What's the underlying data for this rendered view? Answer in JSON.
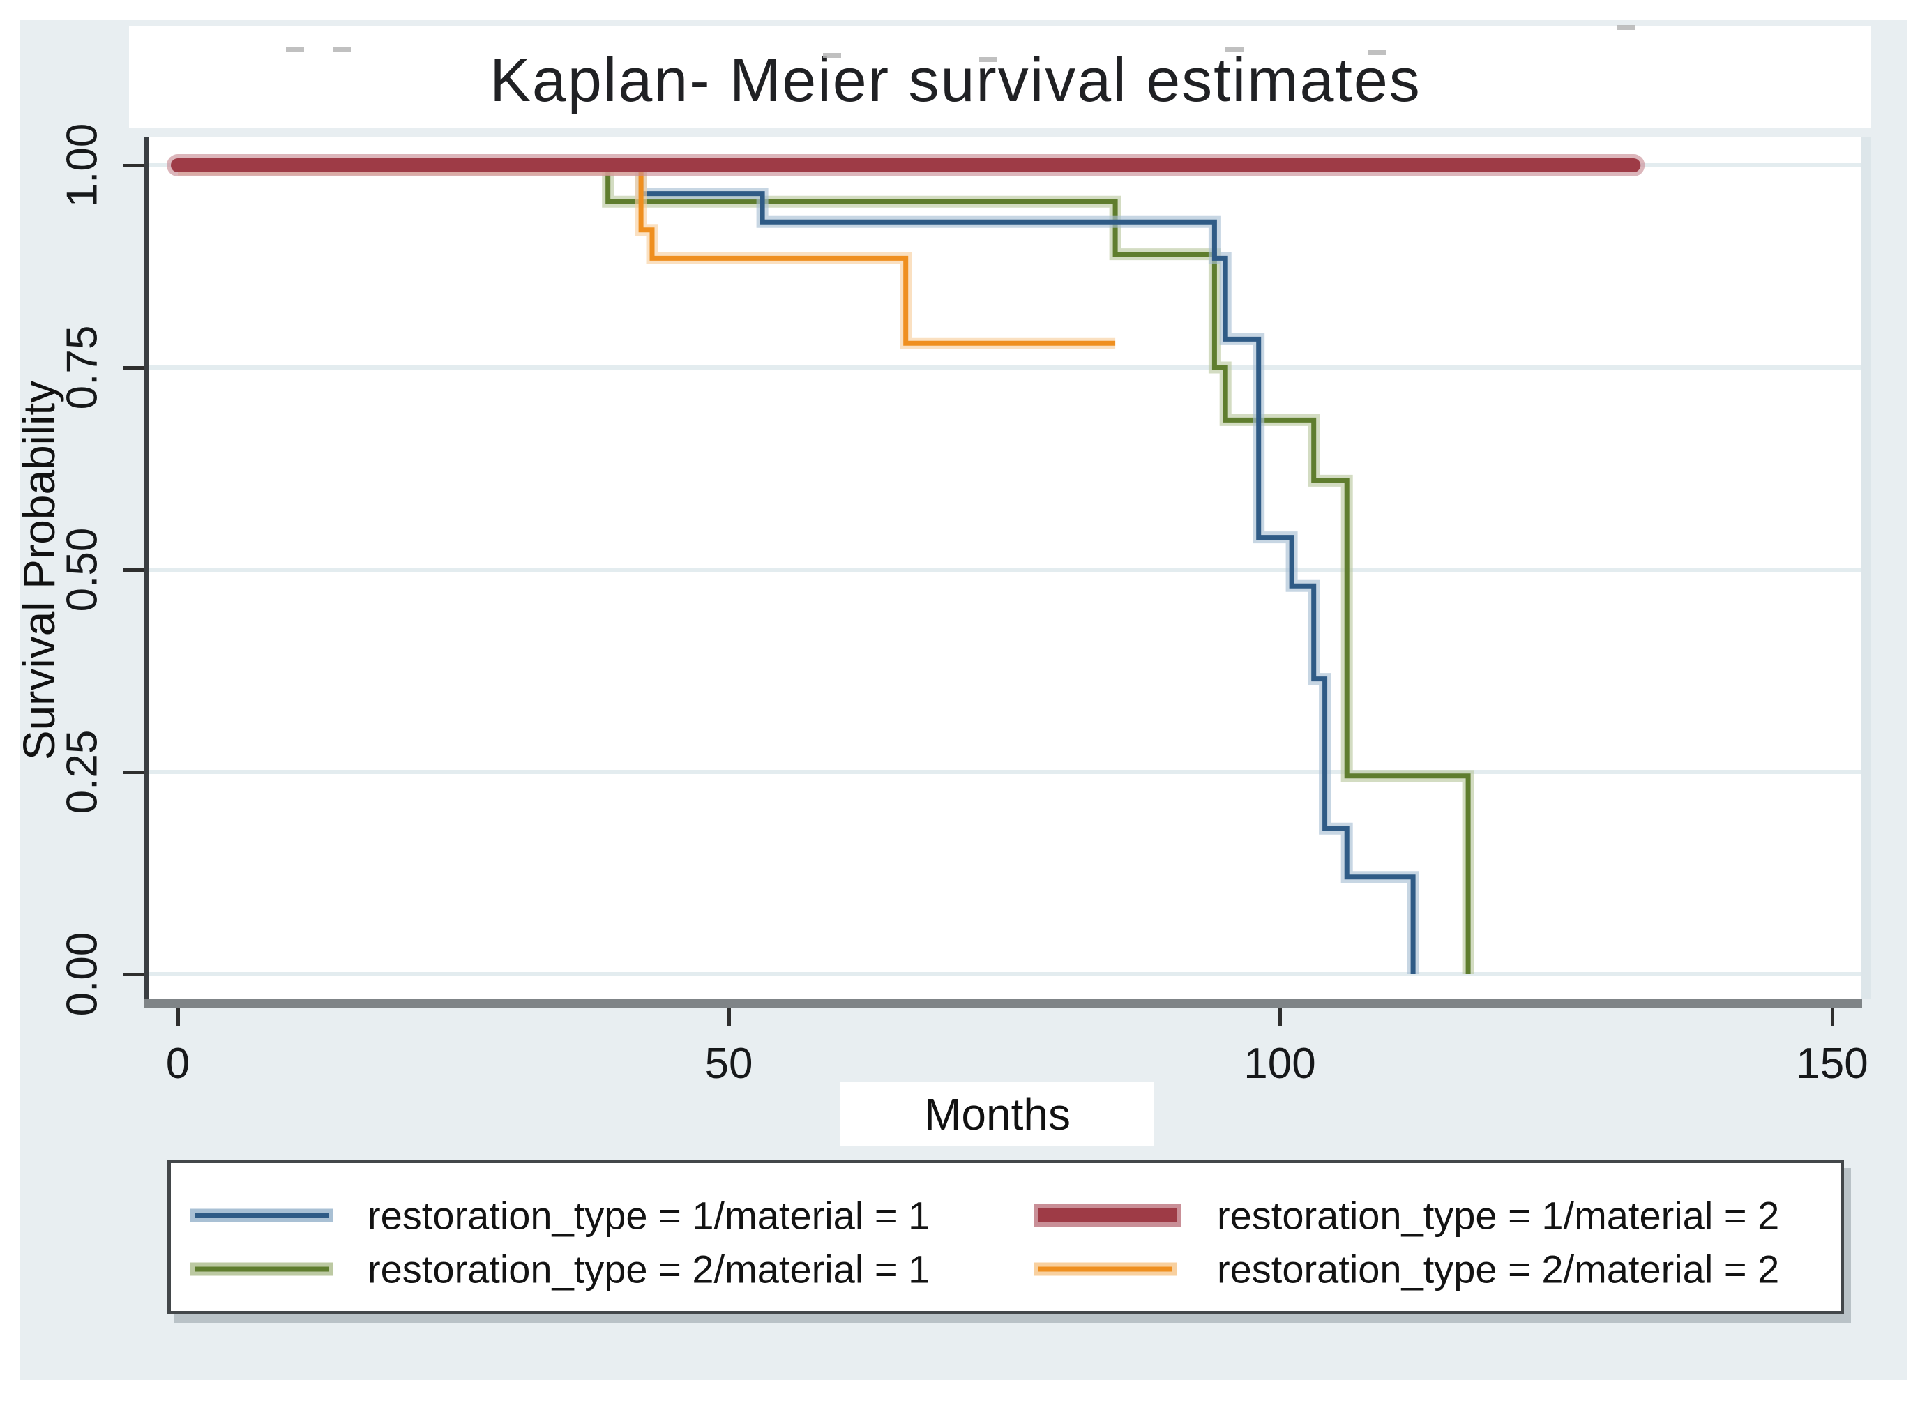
{
  "title": "Kaplan- Meier survival estimates",
  "axes": {
    "y_label": "Survival Probability",
    "x_label": "Months",
    "y_tick_labels": [
      "1.00",
      "0.75",
      "0.50",
      "0.25",
      "0.00"
    ],
    "x_tick_labels": [
      "0",
      "50",
      "100",
      "150"
    ]
  },
  "legend": {
    "entries": [
      {
        "label": "restoration_type = 1/material = 1",
        "color": "#2f5b86",
        "halo": "#a9c0d4",
        "thick": false
      },
      {
        "label": "restoration_type = 1/material = 2",
        "color": "#9e3b46",
        "halo": "#c98f97",
        "thick": true
      },
      {
        "label": "restoration_type = 2/material = 1",
        "color": "#5f7d2e",
        "halo": "#bcc9a2",
        "thick": false
      },
      {
        "label": "restoration_type = 2/material = 2",
        "color": "#ef8f1f",
        "halo": "#f8d09f",
        "thick": false
      }
    ]
  },
  "chart_data": {
    "type": "line",
    "subtype": "kaplan-meier-step",
    "title": "Kaplan- Meier survival estimates",
    "xlabel": "Months",
    "ylabel": "Survival Probability",
    "xlim": [
      0,
      150
    ],
    "ylim": [
      0.0,
      1.0
    ],
    "x_ticks": [
      0,
      50,
      100,
      150
    ],
    "y_ticks": [
      1.0,
      0.75,
      0.5,
      0.25,
      0.0
    ],
    "grid": "horizontal",
    "legend_position": "bottom",
    "series": [
      {
        "name": "restoration_type = 1/material = 1",
        "color": "#2f5b86",
        "halo": "#a9c0d4",
        "thick": false,
        "step_points": [
          [
            0,
            1
          ],
          [
            42,
            1
          ],
          [
            42,
            0.965
          ],
          [
            53,
            0.965
          ],
          [
            53,
            0.93
          ],
          [
            94,
            0.93
          ],
          [
            94,
            0.885
          ],
          [
            95,
            0.885
          ],
          [
            95,
            0.785
          ],
          [
            98,
            0.785
          ],
          [
            98,
            0.54
          ],
          [
            101,
            0.54
          ],
          [
            101,
            0.48
          ],
          [
            103,
            0.48
          ],
          [
            103,
            0.365
          ],
          [
            104,
            0.365
          ],
          [
            104,
            0.18
          ],
          [
            106,
            0.18
          ],
          [
            106,
            0.12
          ],
          [
            112,
            0.12
          ],
          [
            112,
            0
          ]
        ]
      },
      {
        "name": "restoration_type = 1/material = 2",
        "color": "#9e3b46",
        "halo": "#c98f97",
        "thick": true,
        "step_points": [
          [
            0,
            1
          ],
          [
            132,
            1
          ]
        ]
      },
      {
        "name": "restoration_type = 2/material = 1",
        "color": "#5f7d2e",
        "halo": "#bcc9a2",
        "thick": false,
        "step_points": [
          [
            0,
            1
          ],
          [
            39,
            1
          ],
          [
            39,
            0.955
          ],
          [
            85,
            0.955
          ],
          [
            85,
            0.89
          ],
          [
            94,
            0.89
          ],
          [
            94,
            0.75
          ],
          [
            95,
            0.75
          ],
          [
            95,
            0.685
          ],
          [
            103,
            0.685
          ],
          [
            103,
            0.61
          ],
          [
            106,
            0.61
          ],
          [
            106,
            0.245
          ],
          [
            117,
            0.245
          ],
          [
            117,
            0
          ]
        ]
      },
      {
        "name": "restoration_type = 2/material = 2",
        "color": "#ef8f1f",
        "halo": "#f8d09f",
        "thick": false,
        "step_points": [
          [
            0,
            1
          ],
          [
            42,
            1
          ],
          [
            42,
            0.92
          ],
          [
            43,
            0.92
          ],
          [
            43,
            0.885
          ],
          [
            66,
            0.885
          ],
          [
            66,
            0.78
          ],
          [
            85,
            0.78
          ]
        ]
      }
    ]
  }
}
